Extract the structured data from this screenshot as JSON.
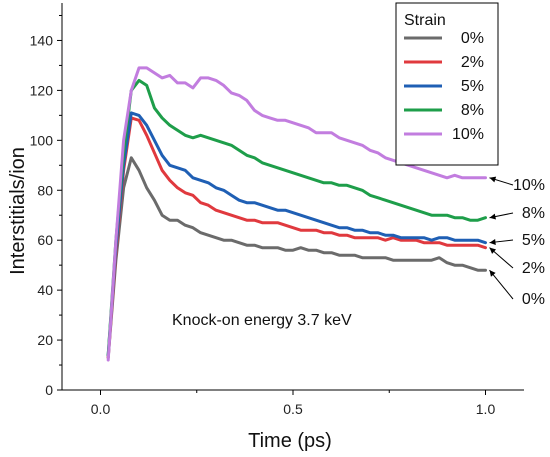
{
  "chart_data": {
    "type": "line",
    "xlabel": "Time (ps)",
    "ylabel": "Interstitials/ion",
    "xlim": [
      -0.1,
      1.1
    ],
    "ylim": [
      0,
      155
    ],
    "xticks": [
      0.0,
      0.5,
      1.0
    ],
    "xtick_labels": [
      "0.0",
      "0.5",
      "1.0"
    ],
    "yticks": [
      0,
      20,
      40,
      60,
      80,
      100,
      120,
      140
    ],
    "ytick_labels": [
      "0",
      "20",
      "40",
      "60",
      "80",
      "100",
      "120",
      "140"
    ],
    "grid": false,
    "legend": {
      "title": "Strain",
      "position": "top-right"
    },
    "annotation": "Knock-on energy 3.7 keV",
    "series": [
      {
        "name": "0%",
        "color": "#6b6b6b",
        "end_label": "0%",
        "x": [
          0.02,
          0.04,
          0.06,
          0.08,
          0.1,
          0.12,
          0.14,
          0.16,
          0.18,
          0.2,
          0.22,
          0.24,
          0.26,
          0.28,
          0.3,
          0.32,
          0.34,
          0.36,
          0.38,
          0.4,
          0.42,
          0.44,
          0.46,
          0.48,
          0.5,
          0.52,
          0.54,
          0.56,
          0.58,
          0.6,
          0.62,
          0.64,
          0.66,
          0.68,
          0.7,
          0.72,
          0.74,
          0.76,
          0.78,
          0.8,
          0.82,
          0.84,
          0.86,
          0.88,
          0.9,
          0.92,
          0.94,
          0.96,
          0.98,
          1.0
        ],
        "y": [
          13,
          52,
          81,
          93,
          88,
          81,
          76,
          70,
          68,
          68,
          66,
          65,
          63,
          62,
          61,
          60,
          60,
          59,
          58,
          58,
          57,
          57,
          57,
          56,
          56,
          57,
          56,
          56,
          55,
          55,
          54,
          54,
          54,
          53,
          53,
          53,
          53,
          52,
          52,
          52,
          52,
          52,
          52,
          53,
          51,
          50,
          50,
          49,
          48,
          48
        ]
      },
      {
        "name": "2%",
        "color": "#e0393e",
        "end_label": "2%",
        "x": [
          0.02,
          0.04,
          0.06,
          0.08,
          0.1,
          0.12,
          0.14,
          0.16,
          0.18,
          0.2,
          0.22,
          0.24,
          0.26,
          0.28,
          0.3,
          0.32,
          0.34,
          0.36,
          0.38,
          0.4,
          0.42,
          0.44,
          0.46,
          0.48,
          0.5,
          0.52,
          0.54,
          0.56,
          0.58,
          0.6,
          0.62,
          0.64,
          0.66,
          0.68,
          0.7,
          0.72,
          0.74,
          0.76,
          0.78,
          0.8,
          0.82,
          0.84,
          0.86,
          0.88,
          0.9,
          0.92,
          0.94,
          0.96,
          0.98,
          1.0
        ],
        "y": [
          13,
          55,
          88,
          109,
          108,
          102,
          95,
          88,
          84,
          81,
          79,
          78,
          75,
          74,
          72,
          71,
          70,
          69,
          68,
          68,
          67,
          67,
          67,
          66,
          65,
          64,
          64,
          64,
          63,
          63,
          62,
          62,
          61,
          61,
          61,
          61,
          60,
          61,
          60,
          60,
          60,
          59,
          59,
          59,
          58,
          58,
          58,
          58,
          58,
          57
        ]
      },
      {
        "name": "5%",
        "color": "#1f5fb4",
        "end_label": "5%",
        "x": [
          0.02,
          0.04,
          0.06,
          0.08,
          0.1,
          0.12,
          0.14,
          0.16,
          0.18,
          0.2,
          0.22,
          0.24,
          0.26,
          0.28,
          0.3,
          0.32,
          0.34,
          0.36,
          0.38,
          0.4,
          0.42,
          0.44,
          0.46,
          0.48,
          0.5,
          0.52,
          0.54,
          0.56,
          0.58,
          0.6,
          0.62,
          0.64,
          0.66,
          0.68,
          0.7,
          0.72,
          0.74,
          0.76,
          0.78,
          0.8,
          0.82,
          0.84,
          0.86,
          0.88,
          0.9,
          0.92,
          0.94,
          0.96,
          0.98,
          1.0
        ],
        "y": [
          14,
          57,
          90,
          111,
          110,
          106,
          100,
          94,
          90,
          89,
          88,
          85,
          84,
          83,
          81,
          80,
          78,
          76,
          75,
          75,
          74,
          73,
          72,
          72,
          71,
          70,
          69,
          68,
          67,
          66,
          65,
          65,
          64,
          64,
          63,
          63,
          62,
          62,
          61,
          61,
          61,
          61,
          60,
          61,
          61,
          60,
          60,
          60,
          60,
          59
        ]
      },
      {
        "name": "8%",
        "color": "#1e9e4a",
        "end_label": "8%",
        "x": [
          0.02,
          0.04,
          0.06,
          0.08,
          0.1,
          0.12,
          0.14,
          0.16,
          0.18,
          0.2,
          0.22,
          0.24,
          0.26,
          0.28,
          0.3,
          0.32,
          0.34,
          0.36,
          0.38,
          0.4,
          0.42,
          0.44,
          0.46,
          0.48,
          0.5,
          0.52,
          0.54,
          0.56,
          0.58,
          0.6,
          0.62,
          0.64,
          0.66,
          0.68,
          0.7,
          0.72,
          0.74,
          0.76,
          0.78,
          0.8,
          0.82,
          0.84,
          0.86,
          0.88,
          0.9,
          0.92,
          0.94,
          0.96,
          0.98,
          1.0
        ],
        "y": [
          14,
          60,
          95,
          120,
          124,
          122,
          113,
          109,
          106,
          104,
          102,
          101,
          102,
          101,
          100,
          99,
          98,
          96,
          94,
          93,
          91,
          90,
          89,
          88,
          87,
          86,
          85,
          84,
          83,
          83,
          82,
          82,
          81,
          80,
          78,
          77,
          76,
          75,
          74,
          73,
          72,
          71,
          70,
          70,
          70,
          69,
          69,
          68,
          68,
          69
        ]
      },
      {
        "name": "10%",
        "color": "#c27ddf",
        "end_label": "10%",
        "x": [
          0.02,
          0.04,
          0.06,
          0.08,
          0.1,
          0.12,
          0.14,
          0.16,
          0.18,
          0.2,
          0.22,
          0.24,
          0.26,
          0.28,
          0.3,
          0.32,
          0.34,
          0.36,
          0.38,
          0.4,
          0.42,
          0.44,
          0.46,
          0.48,
          0.5,
          0.52,
          0.54,
          0.56,
          0.58,
          0.6,
          0.62,
          0.64,
          0.66,
          0.68,
          0.7,
          0.72,
          0.74,
          0.76,
          0.78,
          0.8,
          0.82,
          0.84,
          0.86,
          0.88,
          0.9,
          0.92,
          0.94,
          0.96,
          0.98,
          1.0
        ],
        "y": [
          12,
          60,
          100,
          120,
          129,
          129,
          127,
          125,
          126,
          123,
          123,
          121,
          125,
          125,
          124,
          122,
          119,
          118,
          116,
          112,
          110,
          109,
          108,
          108,
          107,
          106,
          105,
          103,
          103,
          103,
          101,
          100,
          99,
          98,
          96,
          95,
          93,
          92,
          91,
          90,
          89,
          88,
          87,
          86,
          85,
          86,
          85,
          85,
          85,
          85
        ]
      }
    ]
  }
}
